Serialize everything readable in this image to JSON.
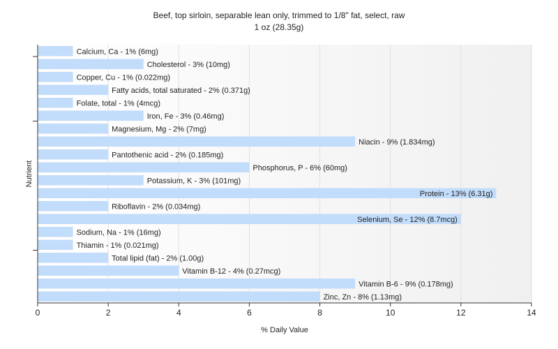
{
  "chart_data": {
    "type": "bar",
    "orientation": "horizontal",
    "title": "Beef, top sirloin, separable lean only, trimmed to 1/8\" fat, select, raw",
    "subtitle": "1 oz (28.35g)",
    "xlabel": "% Daily Value",
    "ylabel": "Nutrient",
    "xlim": [
      0,
      14
    ],
    "xticks": [
      "0",
      "2",
      "4",
      "6",
      "8",
      "10",
      "12",
      "14"
    ],
    "grid": true,
    "colors": {
      "bar": "#c2dcfb",
      "grid": "#e0e0e0",
      "axis": "#333333",
      "text": "#222222"
    },
    "categories": [
      "Calcium, Ca",
      "Cholesterol",
      "Copper, Cu",
      "Fatty acids, total saturated",
      "Folate, total",
      "Iron, Fe",
      "Magnesium, Mg",
      "Niacin",
      "Pantothenic acid",
      "Phosphorus, P",
      "Potassium, K",
      "Protein",
      "Riboflavin",
      "Selenium, Se",
      "Sodium, Na",
      "Thiamin",
      "Total lipid (fat)",
      "Vitamin B-12",
      "Vitamin B-6",
      "Zinc, Zn"
    ],
    "values": [
      1,
      3,
      1,
      2,
      1,
      3,
      2,
      9,
      2,
      6,
      3,
      13,
      2,
      12,
      1,
      1,
      2,
      4,
      9,
      8
    ],
    "labels": [
      "Calcium, Ca - 1% (6mg)",
      "Cholesterol - 3% (10mg)",
      "Copper, Cu - 1% (0.022mg)",
      "Fatty acids, total saturated - 2% (0.371g)",
      "Folate, total - 1% (4mcg)",
      "Iron, Fe - 3% (0.46mg)",
      "Magnesium, Mg - 2% (7mg)",
      "Niacin - 9% (1.834mg)",
      "Pantothenic acid - 2% (0.185mg)",
      "Phosphorus, P - 6% (60mg)",
      "Potassium, K - 3% (101mg)",
      "Protein - 13% (6.31g)",
      "Riboflavin - 2% (0.034mg)",
      "Selenium, Se - 12% (8.7mcg)",
      "Sodium, Na - 1% (16mg)",
      "Thiamin - 1% (0.021mg)",
      "Total lipid (fat) - 2% (1.00g)",
      "Vitamin B-12 - 4% (0.27mcg)",
      "Vitamin B-6 - 9% (0.178mg)",
      "Zinc, Zn - 8% (1.13mg)"
    ]
  }
}
